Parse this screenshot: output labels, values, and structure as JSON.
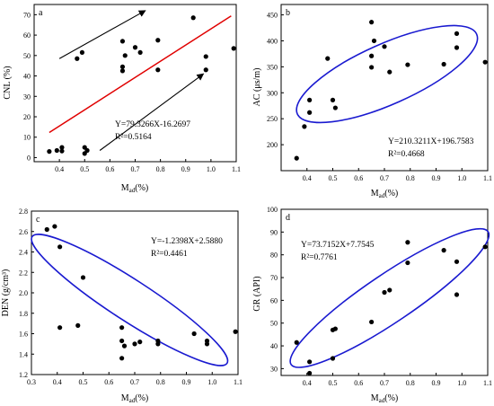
{
  "colors": {
    "points": "#000000",
    "regression_line": "#e00000",
    "ellipse": "#1a1ad0",
    "arrow": "#000000",
    "frame": "#000000"
  },
  "chart_data": [
    {
      "type": "scatter",
      "panel": "a",
      "xlabel": "M_ad(%)",
      "xlabel_main": "M",
      "xlabel_sub": "ad",
      "xlabel_tail": "(%)",
      "ylabel": "CNL (%)",
      "xlim": [
        0.3,
        1.1
      ],
      "ylim": [
        -2,
        75
      ],
      "xticks": [
        "0.4",
        "0.5",
        "0.6",
        "0.7",
        "0.8",
        "0.9",
        "1.0",
        "1.1"
      ],
      "yticks": [
        "0",
        "10",
        "20",
        "30",
        "40",
        "50",
        "60",
        "70"
      ],
      "grid": false,
      "regression": {
        "slope": 79.3266,
        "intercept": -16.2697,
        "x_range": [
          0.36,
          1.08
        ]
      },
      "equation": "Y=79.3266X-16.2697",
      "r2_text": "R²=0.5164",
      "points": [
        [
          0.36,
          3.0
        ],
        [
          0.39,
          3.5
        ],
        [
          0.41,
          3.2
        ],
        [
          0.41,
          5.0
        ],
        [
          0.47,
          48.5
        ],
        [
          0.49,
          51.5
        ],
        [
          0.5,
          2.0
        ],
        [
          0.5,
          5.0
        ],
        [
          0.51,
          3.5
        ],
        [
          0.65,
          42.5
        ],
        [
          0.65,
          44.5
        ],
        [
          0.65,
          57.0
        ],
        [
          0.66,
          50.0
        ],
        [
          0.7,
          54.0
        ],
        [
          0.72,
          51.5
        ],
        [
          0.79,
          43.0
        ],
        [
          0.79,
          57.5
        ],
        [
          0.93,
          68.5
        ],
        [
          0.98,
          43.0
        ],
        [
          0.98,
          49.5
        ],
        [
          1.09,
          53.5
        ]
      ],
      "arrows": [
        {
          "from": [
            0.4,
            48.5
          ],
          "to": [
            0.74,
            72.0
          ]
        },
        {
          "from": [
            0.56,
            3.5
          ],
          "to": [
            0.97,
            41.0
          ]
        }
      ]
    },
    {
      "type": "scatter",
      "panel": "b",
      "xlabel": "M_ad(%)",
      "xlabel_main": "M",
      "xlabel_sub": "ad",
      "xlabel_tail": "(%)",
      "ylabel": "AC (μs/m)",
      "xlim": [
        0.3,
        1.1
      ],
      "ylim": [
        150,
        470
      ],
      "xticks": [
        "0.4",
        "0.5",
        "0.6",
        "0.7",
        "0.8",
        "0.9",
        "1.0",
        "1.1"
      ],
      "yticks": [
        "200",
        "250",
        "300",
        "350",
        "400",
        "450"
      ],
      "grid": false,
      "equation": "Y=210.3211X+196.7583",
      "r2_text": "R²=0.4668",
      "points": [
        [
          0.36,
          174
        ],
        [
          0.39,
          235
        ],
        [
          0.41,
          262
        ],
        [
          0.41,
          286
        ],
        [
          0.48,
          366
        ],
        [
          0.5,
          286
        ],
        [
          0.51,
          271
        ],
        [
          0.65,
          349
        ],
        [
          0.65,
          371
        ],
        [
          0.65,
          436
        ],
        [
          0.66,
          400
        ],
        [
          0.7,
          389
        ],
        [
          0.72,
          340
        ],
        [
          0.79,
          354
        ],
        [
          0.93,
          355
        ],
        [
          0.98,
          387
        ],
        [
          0.98,
          414
        ],
        [
          1.09,
          359
        ]
      ],
      "ellipse": {
        "center": [
          0.71,
          336
        ],
        "semi_x": 0.38,
        "semi_y": 58,
        "angle_deg": -24
      }
    },
    {
      "type": "scatter",
      "panel": "c",
      "xlabel": "M_ad(%)",
      "xlabel_main": "M",
      "xlabel_sub": "ad",
      "xlabel_tail": "(%)",
      "ylabel": "DEN (g/cm³)",
      "xlim": [
        0.3,
        1.1
      ],
      "ylim": [
        1.2,
        2.8
      ],
      "xticks": [
        "0.3",
        "0.4",
        "0.5",
        "0.6",
        "0.7",
        "0.8",
        "0.9",
        "1.0",
        "1.1"
      ],
      "yticks": [
        "1.2",
        "1.4",
        "1.6",
        "1.8",
        "2.0",
        "2.2",
        "2.4",
        "2.6",
        "2.8"
      ],
      "grid": false,
      "equation": "Y=-1.2398X+2.5880",
      "r2_text": "R²=0.4461",
      "points": [
        [
          0.36,
          2.62
        ],
        [
          0.39,
          2.65
        ],
        [
          0.41,
          2.45
        ],
        [
          0.41,
          1.66
        ],
        [
          0.48,
          1.68
        ],
        [
          0.5,
          2.15
        ],
        [
          0.65,
          1.66
        ],
        [
          0.65,
          1.53
        ],
        [
          0.65,
          1.36
        ],
        [
          0.66,
          1.48
        ],
        [
          0.7,
          1.5
        ],
        [
          0.72,
          1.52
        ],
        [
          0.79,
          1.53
        ],
        [
          0.79,
          1.5
        ],
        [
          0.93,
          1.6
        ],
        [
          0.98,
          1.53
        ],
        [
          0.98,
          1.5
        ],
        [
          1.09,
          1.62
        ]
      ],
      "ellipse": {
        "center": [
          0.68,
          1.93
        ],
        "semi_x": 0.45,
        "semi_y": 0.2,
        "angle_deg": 33
      }
    },
    {
      "type": "scatter",
      "panel": "d",
      "xlabel": "M_ad(%)",
      "xlabel_main": "M",
      "xlabel_sub": "ad",
      "xlabel_tail": "(%)",
      "ylabel": "GR (API)",
      "xlim": [
        0.3,
        1.1
      ],
      "ylim": [
        27,
        100
      ],
      "xticks": [
        "0.4",
        "0.5",
        "0.6",
        "0.7",
        "0.8",
        "0.9",
        "1.0",
        "1.1"
      ],
      "yticks": [
        "30",
        "40",
        "50",
        "60",
        "70",
        "80",
        "90",
        "100"
      ],
      "grid": false,
      "equation": "Y=73.7152X+7.7545",
      "r2_text": "R²=0.7761",
      "points": [
        [
          0.36,
          41.5
        ],
        [
          0.41,
          28.0
        ],
        [
          0.41,
          33.0
        ],
        [
          0.5,
          34.5
        ],
        [
          0.5,
          47.0
        ],
        [
          0.51,
          47.5
        ],
        [
          0.65,
          50.5
        ],
        [
          0.7,
          63.5
        ],
        [
          0.72,
          64.5
        ],
        [
          0.79,
          76.5
        ],
        [
          0.79,
          85.5
        ],
        [
          0.93,
          82.0
        ],
        [
          0.98,
          77.0
        ],
        [
          0.98,
          62.5
        ],
        [
          1.09,
          83.5
        ]
      ],
      "ellipse": {
        "center": [
          0.72,
          61
        ],
        "semi_x": 0.46,
        "semi_y": 10.5,
        "angle_deg": -34
      }
    }
  ]
}
